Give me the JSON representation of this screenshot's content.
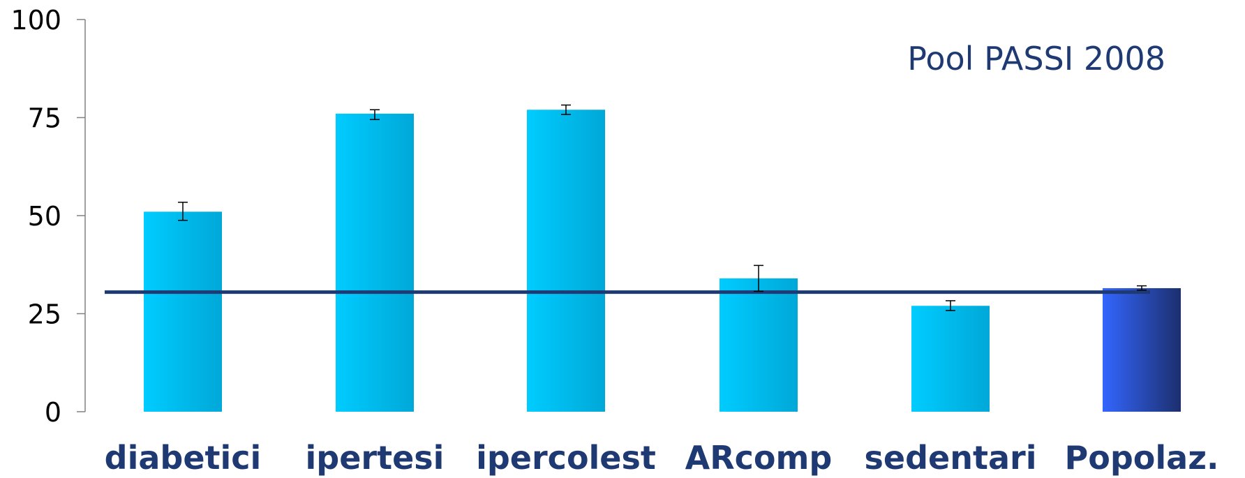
{
  "chart_data": {
    "type": "bar",
    "title": "",
    "xlabel": "",
    "ylabel": "",
    "ylim": [
      0,
      100
    ],
    "yticks": [
      "0",
      "25",
      "50",
      "75",
      "100"
    ],
    "grid": false,
    "annotation": "Pool PASSI 2008",
    "categories": [
      "diabetici",
      "ipertesi",
      "ipercolest",
      "ARcomp",
      "sedentari",
      "Popolaz."
    ],
    "values": [
      51,
      76,
      77,
      34,
      27,
      31.5
    ],
    "error_low": [
      48.8,
      74.5,
      75.8,
      30.7,
      25.8,
      31.0
    ],
    "error_high": [
      53.4,
      77.0,
      78.2,
      37.3,
      28.3,
      32.1
    ],
    "reference_line": 30.5,
    "colors": {
      "bar_light": "#00ccff",
      "bar_dark": "#00a8d8",
      "highlight_light": "#3366ff",
      "highlight_dark": "#1c2f6e",
      "reference_line": "#1f3a73",
      "label_text": "#1f3a73",
      "axis": "#808080"
    },
    "highlight_index": 5
  }
}
